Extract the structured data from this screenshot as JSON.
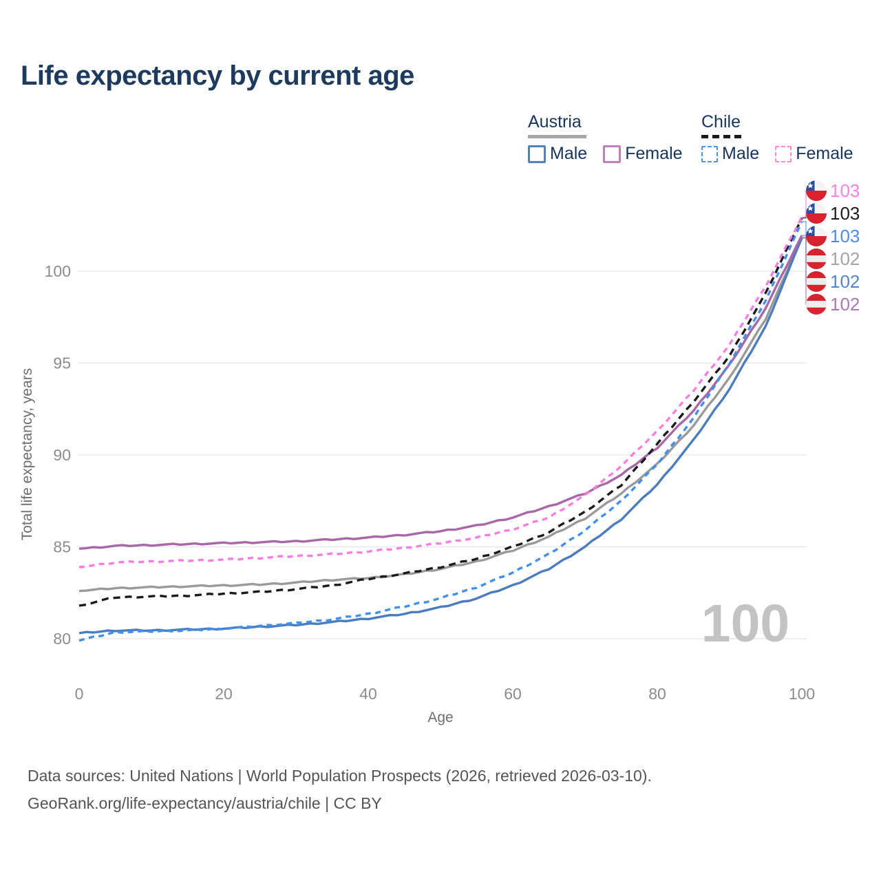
{
  "title": "Life expectancy by current age",
  "watermark": "100",
  "legend": {
    "groups": [
      {
        "name": "Austria",
        "line_style": "solid",
        "swatch_color": "#a6a6a6",
        "items": [
          {
            "label": "Male",
            "box_color": "#5580c0"
          },
          {
            "label": "Female",
            "box_color": "#c080c0"
          }
        ]
      },
      {
        "name": "Chile",
        "line_style": "dashed",
        "swatch_color": "#1a1a1a",
        "items": [
          {
            "label": "Male",
            "box_color": "#4a93f5"
          },
          {
            "label": "Female",
            "box_color": "#fb86e8"
          }
        ]
      }
    ]
  },
  "chart_data": {
    "type": "line",
    "title": "Life expectancy by current age",
    "xlabel": "Age",
    "ylabel": "Total life expectancy, years",
    "xlim": [
      0,
      100
    ],
    "ylim": [
      79,
      103.5
    ],
    "xticks": [
      0,
      20,
      40,
      60,
      80,
      100
    ],
    "yticks": [
      80,
      85,
      90,
      95,
      100
    ],
    "grid": "horizontal",
    "legend_position": "top-right",
    "x": [
      0,
      5,
      10,
      15,
      20,
      25,
      30,
      35,
      40,
      45,
      50,
      55,
      60,
      65,
      70,
      75,
      80,
      85,
      90,
      95,
      100
    ],
    "series": [
      {
        "id": "austria-total",
        "name": "Austria (both sexes)",
        "color": "#9a9a9a",
        "dash": false,
        "values": [
          82.6,
          82.75,
          82.8,
          82.85,
          82.9,
          82.95,
          83.05,
          83.2,
          83.3,
          83.5,
          83.8,
          84.2,
          84.8,
          85.55,
          86.55,
          87.9,
          89.5,
          91.6,
          94.2,
          97.4,
          101.85
        ],
        "end_label": {
          "text": "102",
          "color": "#a3a3a3",
          "flag": "austria-flag-icon",
          "row": 3
        }
      },
      {
        "id": "austria-male",
        "name": "Austria Male",
        "color": "#4a7cc0",
        "dash": false,
        "values": [
          80.3,
          80.45,
          80.45,
          80.5,
          80.55,
          80.65,
          80.75,
          80.9,
          81.1,
          81.35,
          81.7,
          82.2,
          82.9,
          83.8,
          85.0,
          86.5,
          88.4,
          90.8,
          93.6,
          97.0,
          101.8
        ],
        "end_label": {
          "text": "102",
          "color": "#5584c8",
          "flag": "austria-flag-icon",
          "row": 4
        }
      },
      {
        "id": "austria-female",
        "name": "Austria Female",
        "color": "#a868a8",
        "dash": false,
        "values": [
          84.9,
          85.05,
          85.1,
          85.15,
          85.2,
          85.25,
          85.3,
          85.4,
          85.5,
          85.65,
          85.85,
          86.15,
          86.6,
          87.2,
          87.9,
          88.9,
          90.4,
          92.4,
          94.9,
          98.0,
          101.95
        ],
        "end_label": {
          "text": "102",
          "color": "#b077b8",
          "flag": "austria-flag-icon",
          "row": 5
        }
      },
      {
        "id": "chile-total",
        "name": "Chile (both sexes)",
        "color": "#1a1a1a",
        "dash": true,
        "values": [
          81.8,
          82.25,
          82.3,
          82.35,
          82.45,
          82.55,
          82.7,
          82.9,
          83.25,
          83.55,
          83.9,
          84.35,
          85.0,
          85.8,
          86.9,
          88.35,
          90.6,
          92.9,
          95.4,
          98.8,
          102.9
        ],
        "end_label": {
          "text": "103",
          "color": "#1c1c1c",
          "flag": "chile-flag-icon",
          "row": 1
        }
      },
      {
        "id": "chile-male",
        "name": "Chile Male",
        "color": "#4090f0",
        "dash": true,
        "values": [
          79.9,
          80.35,
          80.4,
          80.45,
          80.55,
          80.7,
          80.85,
          81.05,
          81.35,
          81.75,
          82.2,
          82.8,
          83.6,
          84.6,
          85.9,
          87.5,
          89.5,
          92.0,
          95.0,
          98.4,
          102.7
        ],
        "end_label": {
          "text": "103",
          "color": "#4b8bf5",
          "flag": "chile-flag-icon",
          "row": 2
        }
      },
      {
        "id": "chile-female",
        "name": "Chile Female",
        "color": "#fa7ce0",
        "dash": true,
        "values": [
          83.9,
          84.15,
          84.2,
          84.25,
          84.3,
          84.4,
          84.5,
          84.6,
          84.75,
          84.95,
          85.2,
          85.5,
          85.95,
          86.6,
          87.8,
          89.4,
          91.3,
          93.5,
          96.0,
          99.2,
          102.95
        ],
        "end_label": {
          "text": "103",
          "color": "#fd80e4",
          "flag": "chile-flag-icon",
          "row": 0
        }
      }
    ]
  },
  "footer": {
    "line1": "Data sources: United Nations | World Population Prospects (2026, retrieved 2026-03-10).",
    "line2": "GeoRank.org/life-expectancy/austria/chile | CC BY"
  }
}
